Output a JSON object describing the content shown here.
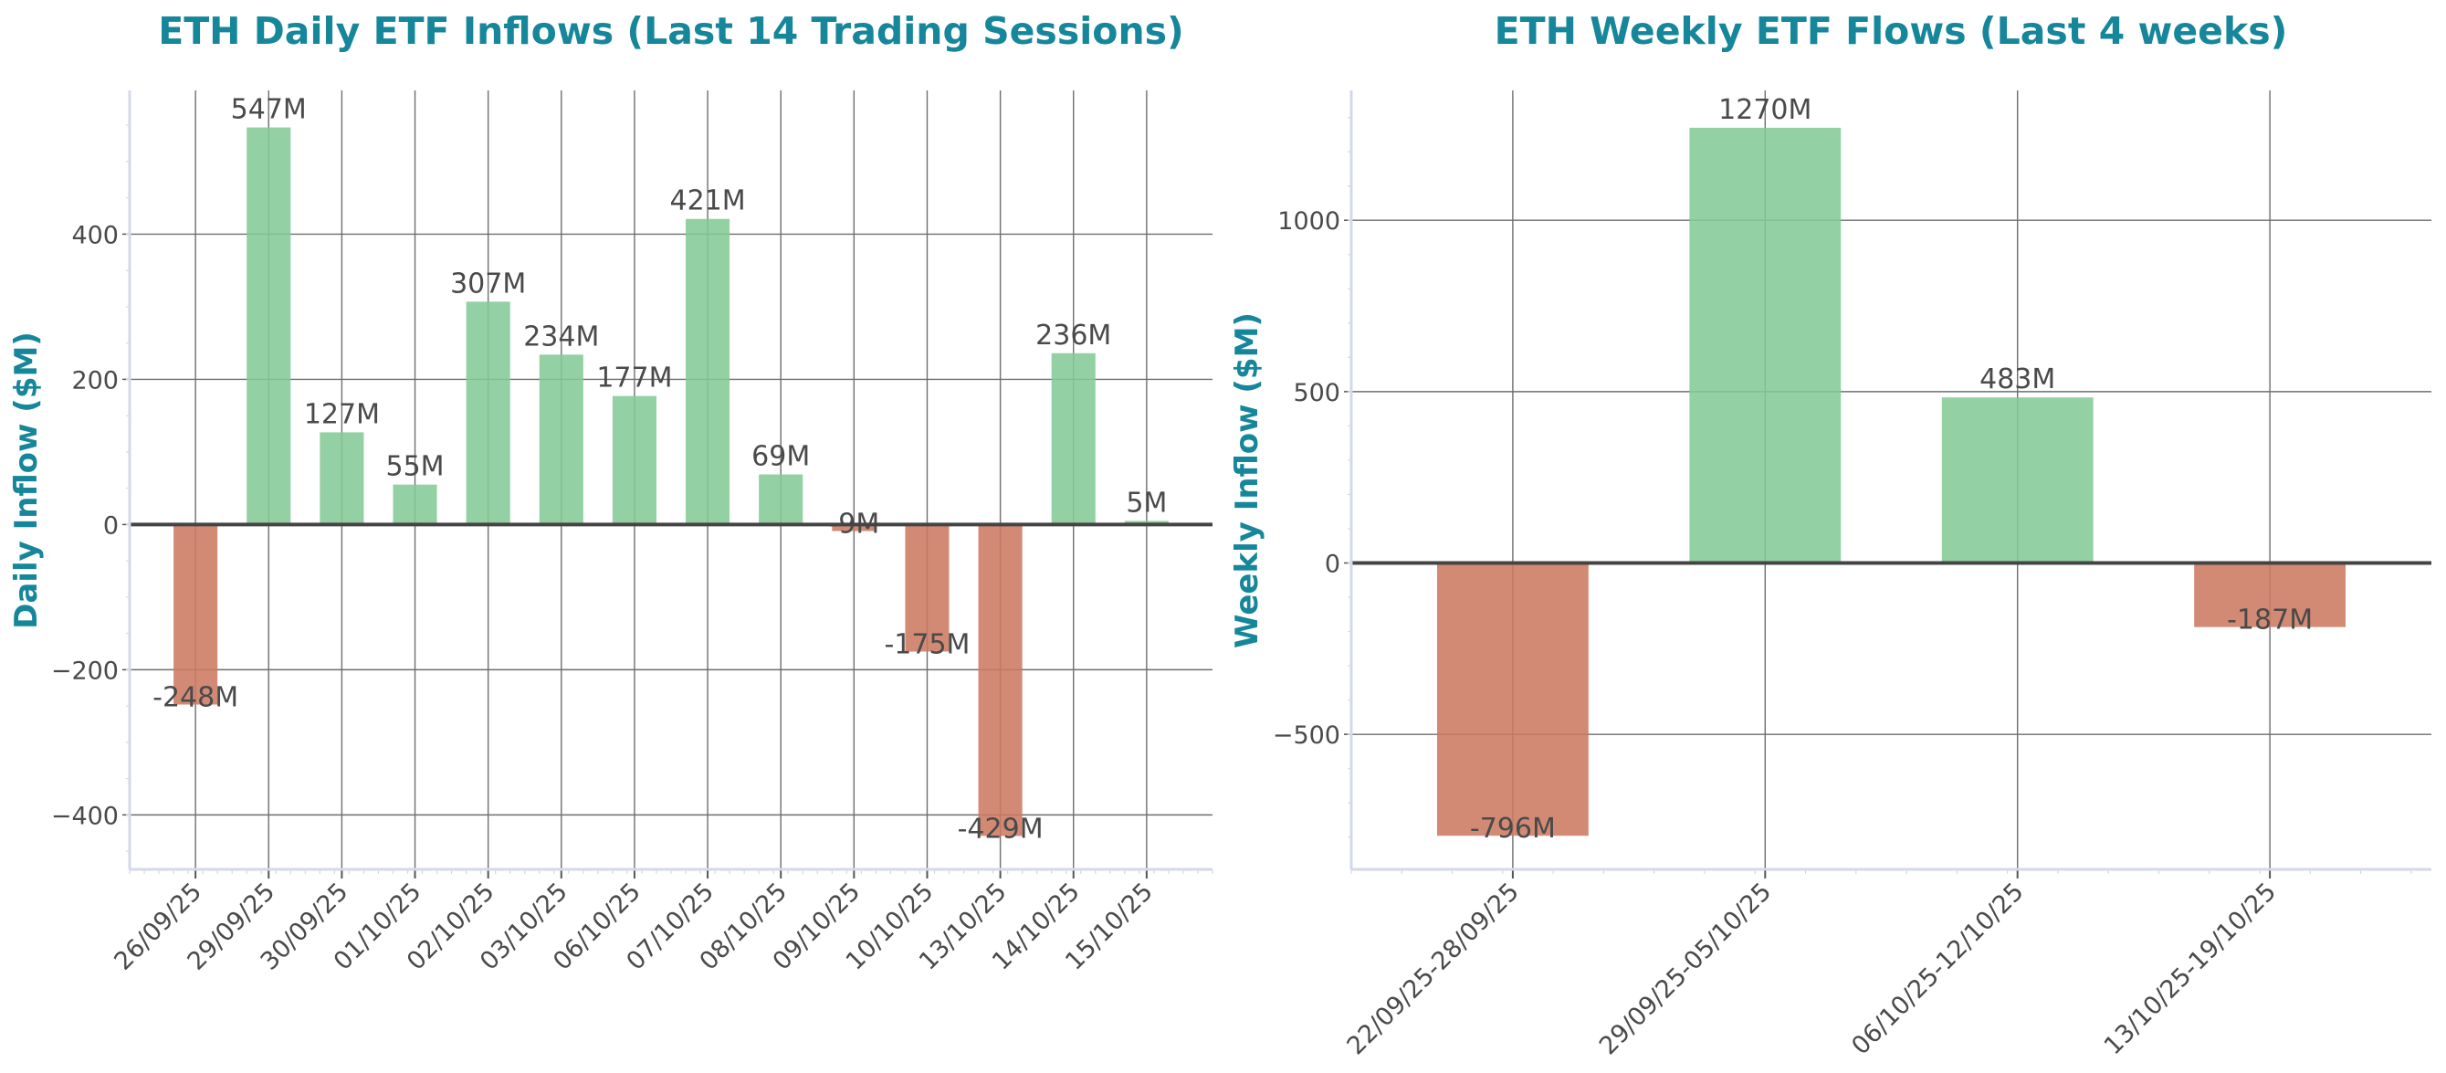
{
  "colors": {
    "positive": "#84c996",
    "negative": "#cc7a62",
    "title": "#16869a",
    "text": "#4a4a4a"
  },
  "chart_data": [
    {
      "type": "bar",
      "title": "ETH Daily ETF Inflows (Last 14 Trading Sessions)",
      "xlabel": "",
      "ylabel": "Daily Inflow ($M)",
      "categories": [
        "26/09/25",
        "29/09/25",
        "30/09/25",
        "01/10/25",
        "02/10/25",
        "03/10/25",
        "06/10/25",
        "07/10/25",
        "08/10/25",
        "09/10/25",
        "10/10/25",
        "13/10/25",
        "14/10/25",
        "15/10/25"
      ],
      "values": [
        -248,
        547,
        127,
        55,
        307,
        234,
        177,
        421,
        69,
        -9,
        -175,
        -429,
        236,
        5
      ],
      "data_labels": [
        "-248M",
        "547M",
        "127M",
        "55M",
        "307M",
        "234M",
        "177M",
        "421M",
        "69M",
        "-9M",
        "-175M",
        "-429M",
        "236M",
        "5M"
      ],
      "yticks": [
        -400,
        -200,
        0,
        200,
        400
      ],
      "ytick_labels": [
        "−400",
        "−200",
        "0",
        "200",
        "400"
      ],
      "ylim": [
        -475,
        598
      ],
      "grid": true
    },
    {
      "type": "bar",
      "title": "ETH Weekly ETF Flows (Last 4 weeks)",
      "xlabel": "",
      "ylabel": "Weekly Inflow ($M)",
      "categories": [
        "22/09/25-28/09/25",
        "29/09/25-05/10/25",
        "06/10/25-12/10/25",
        "13/10/25-19/10/25"
      ],
      "values": [
        -796,
        1270,
        483,
        -187
      ],
      "data_labels": [
        "-796M",
        "1270M",
        "483M",
        "-187M"
      ],
      "yticks": [
        -500,
        0,
        500,
        1000
      ],
      "ytick_labels": [
        "−500",
        "0",
        "500",
        "1000"
      ],
      "ylim": [
        -894,
        1379
      ],
      "grid": true
    }
  ]
}
